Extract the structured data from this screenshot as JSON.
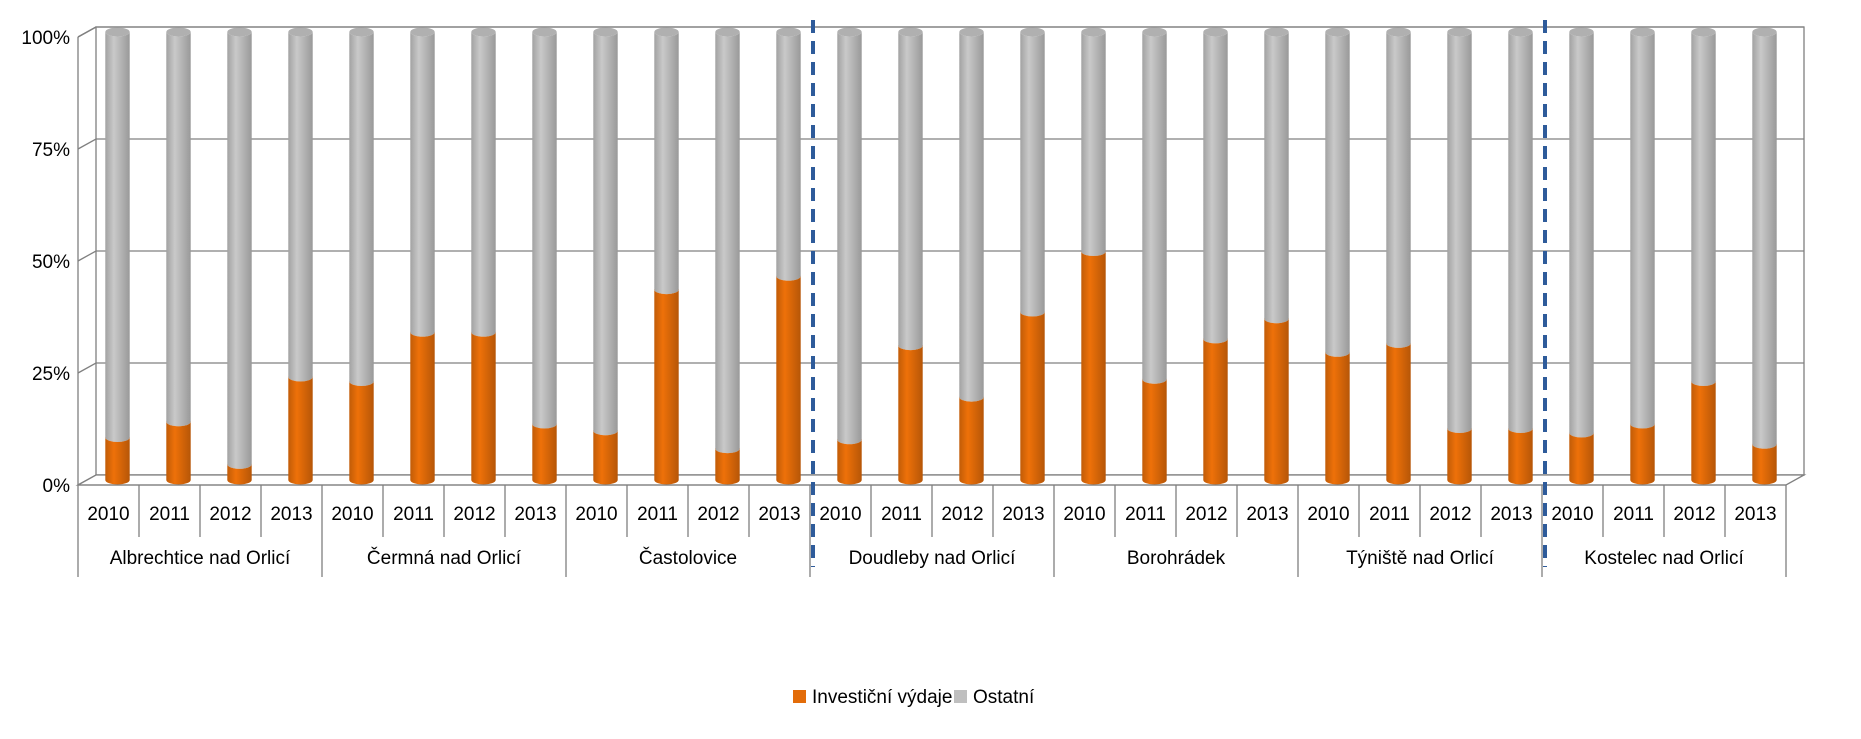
{
  "chart_data": {
    "type": "bar",
    "stacked": true,
    "percent": true,
    "years": [
      "2010",
      "2011",
      "2012",
      "2013"
    ],
    "groups": [
      "Albrechtice nad Orlicí",
      "Čermná nad Orlicí",
      "Častolovice",
      "Doudleby nad Orlicí",
      "Borohrádek",
      "Týniště nad Orlicí",
      "Kostelec nad Orlicí"
    ],
    "series": [
      {
        "name": "Investiční výdaje",
        "color": "#e36c09",
        "values": [
          9.5,
          13,
          3.5,
          23,
          22,
          33,
          33,
          12.5,
          11,
          42.5,
          7,
          45.5,
          9,
          30,
          18.5,
          37.5,
          51,
          22.5,
          31.5,
          36,
          28.5,
          30.5,
          11.5,
          11.5,
          10.5,
          12.5,
          22,
          8
        ]
      },
      {
        "name": "Ostatní",
        "color": "#bfbfbf",
        "values": [
          90.5,
          87,
          96.5,
          77,
          78,
          67,
          67,
          87.5,
          89,
          57.5,
          93,
          54.5,
          91,
          70,
          81.5,
          62.5,
          49,
          77.5,
          68.5,
          64,
          71.5,
          69.5,
          88.5,
          88.5,
          89.5,
          87.5,
          78,
          92
        ]
      }
    ],
    "y_ticks": [
      "0%",
      "25%",
      "50%",
      "75%",
      "100%"
    ],
    "ylim": [
      0,
      100
    ],
    "grid": true,
    "legend_position": "bottom",
    "separators_after_group": [
      2,
      5
    ],
    "separator_color": "#2e5b9a",
    "gridline_color": "#808080"
  }
}
